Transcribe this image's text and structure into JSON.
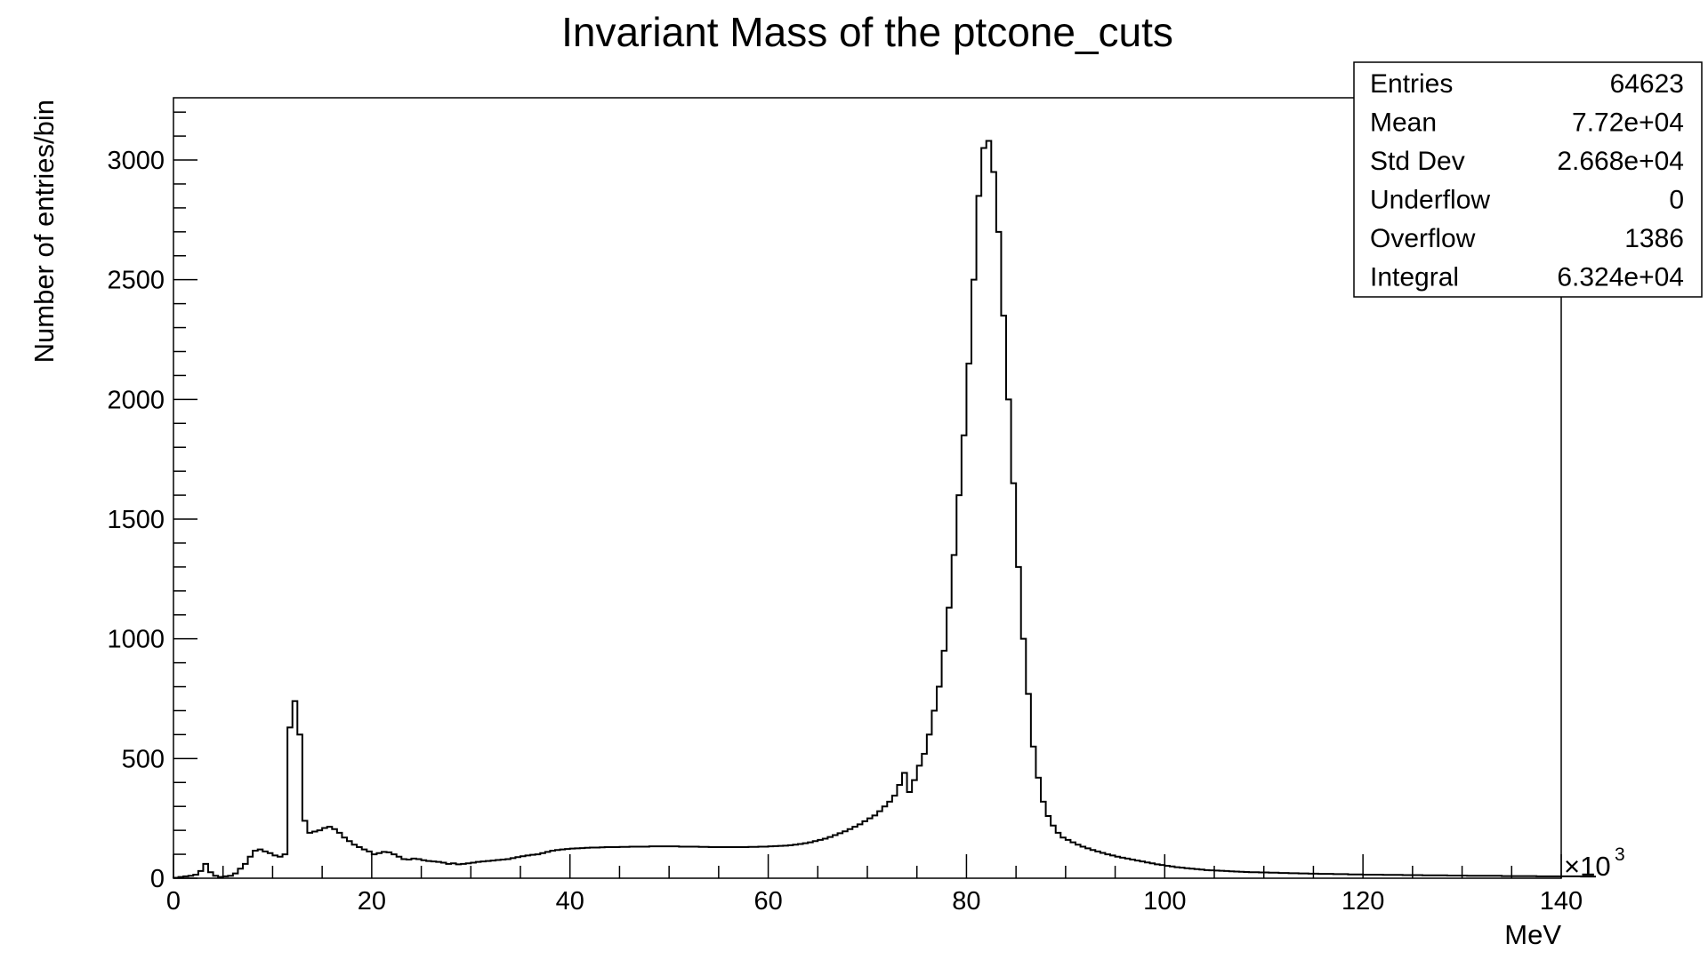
{
  "chart_data": {
    "type": "bar",
    "title": "Invariant Mass of the ptcone_cuts",
    "xlabel": "MeV",
    "ylabel": "Number of entries/bin",
    "x_multiplier": "×10",
    "x_multiplier_exp": "3",
    "xlim": [
      0,
      140000
    ],
    "ylim": [
      0,
      3260
    ],
    "x_ticks": [
      "0",
      "20",
      "40",
      "60",
      "80",
      "100",
      "120",
      "140"
    ],
    "y_ticks": [
      "0",
      "500",
      "1000",
      "1500",
      "2000",
      "2500",
      "3000"
    ],
    "bin_width": 500,
    "x_start": 0,
    "values": [
      2,
      5,
      8,
      10,
      15,
      30,
      60,
      25,
      10,
      5,
      8,
      10,
      20,
      40,
      60,
      90,
      115,
      120,
      112,
      105,
      95,
      90,
      100,
      630,
      740,
      600,
      240,
      190,
      195,
      200,
      210,
      215,
      205,
      190,
      170,
      155,
      140,
      130,
      120,
      112,
      100,
      105,
      110,
      108,
      100,
      90,
      80,
      78,
      82,
      80,
      75,
      72,
      70,
      68,
      65,
      60,
      62,
      58,
      60,
      62,
      65,
      68,
      70,
      72,
      74,
      76,
      78,
      80,
      84,
      88,
      92,
      95,
      98,
      100,
      105,
      110,
      115,
      118,
      120,
      122,
      124,
      125,
      126,
      127,
      128,
      128,
      129,
      130,
      130,
      130,
      131,
      131,
      132,
      132,
      132,
      132,
      133,
      133,
      133,
      133,
      133,
      133,
      132,
      132,
      132,
      132,
      131,
      131,
      130,
      130,
      130,
      130,
      130,
      130,
      130,
      130,
      131,
      131,
      132,
      132,
      133,
      134,
      135,
      136,
      138,
      140,
      143,
      146,
      150,
      155,
      160,
      165,
      172,
      180,
      188,
      196,
      205,
      215,
      225,
      238,
      250,
      262,
      280,
      300,
      320,
      345,
      390,
      440,
      360,
      410,
      470,
      520,
      600,
      700,
      800,
      950,
      1130,
      1350,
      1600,
      1850,
      2150,
      2500,
      2850,
      3050,
      3080,
      2950,
      2700,
      2350,
      2000,
      1650,
      1300,
      1000,
      770,
      550,
      420,
      320,
      260,
      220,
      190,
      170,
      160,
      150,
      140,
      132,
      125,
      118,
      112,
      106,
      100,
      95,
      90,
      86,
      82,
      78,
      74,
      70,
      66,
      62,
      58,
      55,
      52,
      49,
      46,
      44,
      42,
      40,
      38,
      36,
      34,
      33,
      32,
      31,
      30,
      29,
      28,
      27,
      26,
      25,
      25,
      24,
      24,
      23,
      23,
      22,
      22,
      21,
      21,
      20,
      20,
      19,
      19,
      18,
      18,
      18,
      17,
      17,
      17,
      16,
      16,
      16,
      15,
      15,
      15,
      15,
      14,
      14,
      14,
      14,
      13,
      13,
      13,
      13,
      12,
      12,
      12,
      12,
      12,
      11,
      11,
      11,
      11,
      10,
      10,
      10,
      10,
      10,
      10,
      10,
      9,
      9,
      9,
      9,
      9,
      9,
      9,
      8,
      8,
      8,
      8,
      8,
      8,
      8,
      8,
      8,
      7,
      7,
      7
    ]
  },
  "stats": {
    "rows": [
      {
        "label": "Entries",
        "value": "64623"
      },
      {
        "label": "Mean",
        "value": "7.72e+04"
      },
      {
        "label": "Std Dev",
        "value": "2.668e+04"
      },
      {
        "label": "Underflow",
        "value": "0"
      },
      {
        "label": "Overflow",
        "value": "1386"
      },
      {
        "label": "Integral",
        "value": "6.324e+04"
      }
    ]
  }
}
